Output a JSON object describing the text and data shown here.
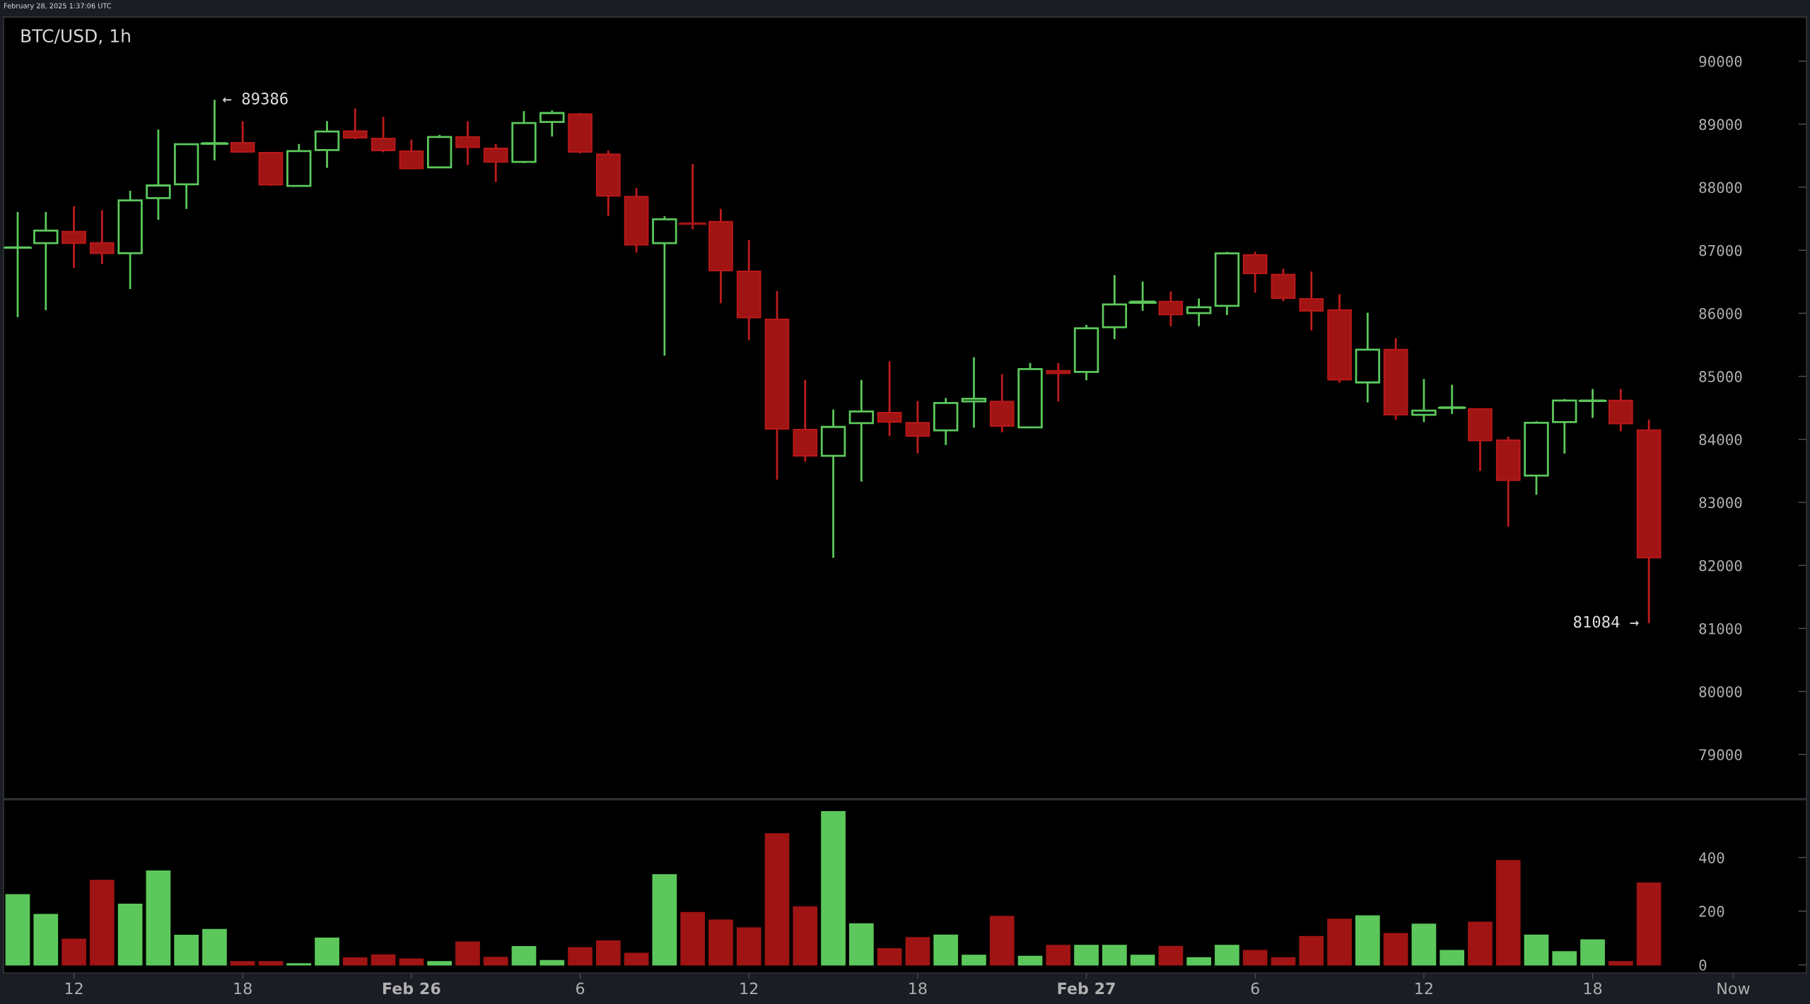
{
  "chart_data": [
    {
      "type": "candlestick",
      "title": "BTC/USD, 1h",
      "annotations": [
        "February 28, 2025 1:37:06 UTC",
        {
          "text": "← 89386",
          "x": "2025-02-25T17:00",
          "y": 89386
        },
        {
          "text": "81084 →",
          "x": "2025-02-27T20:00",
          "y": 81084
        }
      ],
      "x": [
        "2025-02-25T10:00",
        "2025-02-25T11:00",
        "2025-02-25T12:00",
        "2025-02-25T13:00",
        "2025-02-25T14:00",
        "2025-02-25T15:00",
        "2025-02-25T16:00",
        "2025-02-25T17:00",
        "2025-02-25T18:00",
        "2025-02-25T19:00",
        "2025-02-25T20:00",
        "2025-02-25T21:00",
        "2025-02-25T22:00",
        "2025-02-25T23:00",
        "2025-02-26T00:00",
        "2025-02-26T01:00",
        "2025-02-26T02:00",
        "2025-02-26T03:00",
        "2025-02-26T04:00",
        "2025-02-26T05:00",
        "2025-02-26T06:00",
        "2025-02-26T07:00",
        "2025-02-26T08:00",
        "2025-02-26T09:00",
        "2025-02-26T10:00",
        "2025-02-26T11:00",
        "2025-02-26T12:00",
        "2025-02-26T13:00",
        "2025-02-26T14:00",
        "2025-02-26T15:00",
        "2025-02-26T16:00",
        "2025-02-26T17:00",
        "2025-02-26T18:00",
        "2025-02-26T19:00",
        "2025-02-26T20:00",
        "2025-02-26T21:00",
        "2025-02-26T22:00",
        "2025-02-26T23:00",
        "2025-02-27T00:00",
        "2025-02-27T01:00",
        "2025-02-27T02:00",
        "2025-02-27T03:00",
        "2025-02-27T04:00",
        "2025-02-27T05:00",
        "2025-02-27T06:00",
        "2025-02-27T07:00",
        "2025-02-27T08:00",
        "2025-02-27T09:00",
        "2025-02-27T10:00",
        "2025-02-27T11:00",
        "2025-02-27T12:00",
        "2025-02-27T13:00",
        "2025-02-27T14:00",
        "2025-02-27T15:00",
        "2025-02-27T16:00",
        "2025-02-27T17:00",
        "2025-02-27T18:00",
        "2025-02-27T19:00",
        "2025-02-27T20:00"
      ],
      "ohlc": [
        [
          87040,
          87607,
          85939,
          87045
        ],
        [
          87112,
          87607,
          86049,
          87313
        ],
        [
          87295,
          87698,
          86721,
          87112
        ],
        [
          87118,
          87637,
          86782,
          86953
        ],
        [
          86953,
          87943,
          86385,
          87790
        ],
        [
          87827,
          88914,
          87485,
          88028
        ],
        [
          88047,
          88682,
          87656,
          88682
        ],
        [
          88690,
          89386,
          88425,
          88700
        ],
        [
          88706,
          89049,
          88560,
          88560
        ],
        [
          88548,
          88548,
          88022,
          88041
        ],
        [
          88022,
          88688,
          88022,
          88572
        ],
        [
          88590,
          89049,
          88309,
          88884
        ],
        [
          88890,
          89250,
          88762,
          88786
        ],
        [
          88774,
          89116,
          88554,
          88584
        ],
        [
          88572,
          88755,
          88297,
          88297
        ],
        [
          88315,
          88829,
          88315,
          88798
        ],
        [
          88798,
          89049,
          88352,
          88633
        ],
        [
          88615,
          88688,
          88083,
          88401
        ],
        [
          88401,
          89208,
          88383,
          89018
        ],
        [
          89036,
          89220,
          88804,
          89177
        ],
        [
          89159,
          89177,
          88535,
          88560
        ],
        [
          88523,
          88584,
          87546,
          87863
        ],
        [
          87851,
          87986,
          86965,
          87087
        ],
        [
          87112,
          87540,
          85328,
          87491
        ],
        [
          87430,
          88370,
          87332,
          87420
        ],
        [
          87454,
          87656,
          86159,
          86678
        ],
        [
          86666,
          87161,
          85572,
          85933
        ],
        [
          85902,
          86354,
          83360,
          84167
        ],
        [
          84155,
          84943,
          83647,
          83739
        ],
        [
          83739,
          84472,
          82120,
          84197
        ],
        [
          84258,
          84943,
          83330,
          84442
        ],
        [
          84423,
          85236,
          84051,
          84277
        ],
        [
          84264,
          84607,
          83776,
          84051
        ],
        [
          84143,
          84656,
          83910,
          84576
        ],
        [
          84601,
          85303,
          84185,
          84644
        ],
        [
          84601,
          85034,
          84112,
          84210
        ],
        [
          84191,
          85212,
          84191,
          85114
        ],
        [
          85089,
          85212,
          84601,
          85047
        ],
        [
          85071,
          85816,
          84937,
          85761
        ],
        [
          85780,
          86605,
          85590,
          86140
        ],
        [
          86170,
          86504,
          86040,
          86186
        ],
        [
          86186,
          86345,
          85795,
          85979
        ],
        [
          86003,
          86235,
          85795,
          86095
        ],
        [
          86119,
          86975,
          85973,
          86950
        ],
        [
          86926,
          86975,
          86327,
          86632
        ],
        [
          86614,
          86706,
          86192,
          86241
        ],
        [
          86229,
          86663,
          85728,
          86040
        ],
        [
          86052,
          86303,
          84897,
          84946
        ],
        [
          84903,
          86009,
          84586,
          85423
        ],
        [
          85423,
          85606,
          84311,
          84390
        ],
        [
          84390,
          84958,
          84274,
          84457
        ],
        [
          84500,
          84867,
          84402,
          84506
        ],
        [
          84482,
          84482,
          83498,
          83981
        ],
        [
          83987,
          84042,
          82612,
          83351
        ],
        [
          83425,
          84286,
          83119,
          84262
        ],
        [
          84274,
          84640,
          83773,
          84616
        ],
        [
          84610,
          84799,
          84341,
          84616
        ],
        [
          84616,
          84799,
          84127,
          84250
        ],
        [
          84146,
          84311,
          81084,
          82123
        ]
      ],
      "xlim": [
        "2025-02-25T09:30",
        "2025-02-28T01:36"
      ],
      "ylim": [
        78300,
        90700
      ],
      "yticks": [
        79000,
        80000,
        81000,
        82000,
        83000,
        84000,
        85000,
        86000,
        87000,
        88000,
        89000,
        90000
      ],
      "tick_labels": "y"
    },
    {
      "type": "bar",
      "x": [
        "2025-02-25T10:00",
        "2025-02-25T11:00",
        "2025-02-25T12:00",
        "2025-02-25T13:00",
        "2025-02-25T14:00",
        "2025-02-25T15:00",
        "2025-02-25T16:00",
        "2025-02-25T17:00",
        "2025-02-25T18:00",
        "2025-02-25T19:00",
        "2025-02-25T20:00",
        "2025-02-25T21:00",
        "2025-02-25T22:00",
        "2025-02-25T23:00",
        "2025-02-26T00:00",
        "2025-02-26T01:00",
        "2025-02-26T02:00",
        "2025-02-26T03:00",
        "2025-02-26T04:00",
        "2025-02-26T05:00",
        "2025-02-26T06:00",
        "2025-02-26T07:00",
        "2025-02-26T08:00",
        "2025-02-26T09:00",
        "2025-02-26T10:00",
        "2025-02-26T11:00",
        "2025-02-26T12:00",
        "2025-02-26T13:00",
        "2025-02-26T14:00",
        "2025-02-26T15:00",
        "2025-02-26T16:00",
        "2025-02-26T17:00",
        "2025-02-26T18:00",
        "2025-02-26T19:00",
        "2025-02-26T20:00",
        "2025-02-26T21:00",
        "2025-02-26T22:00",
        "2025-02-26T23:00",
        "2025-02-27T00:00",
        "2025-02-27T01:00",
        "2025-02-27T02:00",
        "2025-02-27T03:00",
        "2025-02-27T04:00",
        "2025-02-27T05:00",
        "2025-02-27T06:00",
        "2025-02-27T07:00",
        "2025-02-27T08:00",
        "2025-02-27T09:00",
        "2025-02-27T10:00",
        "2025-02-27T11:00",
        "2025-02-27T12:00",
        "2025-02-27T13:00",
        "2025-02-27T14:00",
        "2025-02-27T15:00",
        "2025-02-27T16:00",
        "2025-02-27T17:00",
        "2025-02-27T18:00",
        "2025-02-27T19:00",
        "2025-02-27T20:00"
      ],
      "values": [
        261,
        187,
        95,
        314,
        225,
        349,
        109,
        131,
        11,
        11,
        3,
        99,
        25,
        36,
        21,
        11,
        84,
        27,
        67,
        15,
        63,
        88,
        42,
        335,
        194,
        166,
        137,
        488,
        215,
        570,
        152,
        59,
        101,
        110,
        35,
        180,
        31,
        72,
        72,
        72,
        35,
        68,
        26,
        72,
        53,
        26,
        105,
        169,
        182,
        116,
        151,
        53,
        158,
        388,
        110,
        48,
        92,
        11,
        304
      ],
      "colors": [
        "#5cc85c",
        "#5cc85c",
        "#a01414",
        "#a01414",
        "#5cc85c",
        "#5cc85c",
        "#5cc85c",
        "#5cc85c",
        "#a01414",
        "#a01414",
        "#5cc85c",
        "#5cc85c",
        "#a01414",
        "#a01414",
        "#a01414",
        "#5cc85c",
        "#a01414",
        "#a01414",
        "#5cc85c",
        "#5cc85c",
        "#a01414",
        "#a01414",
        "#a01414",
        "#5cc85c",
        "#a01414",
        "#a01414",
        "#a01414",
        "#a01414",
        "#a01414",
        "#5cc85c",
        "#5cc85c",
        "#a01414",
        "#a01414",
        "#5cc85c",
        "#5cc85c",
        "#a01414",
        "#5cc85c",
        "#a01414",
        "#5cc85c",
        "#5cc85c",
        "#5cc85c",
        "#a01414",
        "#5cc85c",
        "#5cc85c",
        "#a01414",
        "#a01414",
        "#a01414",
        "#a01414",
        "#5cc85c",
        "#a01414",
        "#5cc85c",
        "#5cc85c",
        "#a01414",
        "#a01414",
        "#5cc85c",
        "#5cc85c",
        "#5cc85c",
        "#a01414",
        "#a01414"
      ],
      "xlim": [
        "2025-02-25T09:30",
        "2025-02-28T01:36"
      ],
      "ylim": [
        -30,
        615
      ],
      "yticks": [
        0,
        200,
        400
      ],
      "xticks": [
        {
          "value": "2025-02-25T12:00",
          "label": "12"
        },
        {
          "value": "2025-02-25T18:00",
          "label": "18"
        },
        {
          "value": "2025-02-26",
          "label": "Feb 26"
        },
        {
          "value": "2025-02-26T06:00",
          "label": "6"
        },
        {
          "value": "2025-02-26T12:00",
          "label": "12"
        },
        {
          "value": "2025-02-26T18:00",
          "label": "18"
        },
        {
          "value": "2025-02-27",
          "label": "Feb 27"
        },
        {
          "value": "2025-02-27T06:00",
          "label": "6"
        },
        {
          "value": "2025-02-27T12:00",
          "label": "12"
        },
        {
          "value": "2025-02-27T18:00",
          "label": "18"
        },
        {
          "value": "2025-02-27T23:00",
          "label": "Now"
        }
      ]
    }
  ]
}
